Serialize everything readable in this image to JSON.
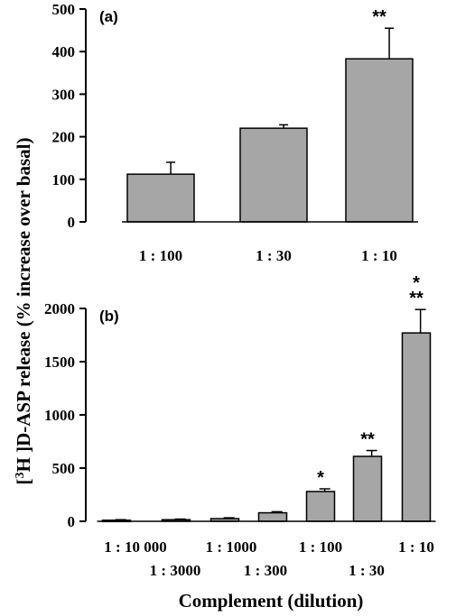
{
  "y_title": {
    "bracket_open": "[",
    "superscript": "3",
    "rest": "H ]D-ASP release (% increase over basal)"
  },
  "x_title": "Complement (dilution)",
  "chart_data": [
    {
      "type": "bar",
      "panel_label": "(a)",
      "categories": [
        "1 : 100",
        "1 : 30",
        "1 : 10"
      ],
      "values": [
        112,
        220,
        383
      ],
      "errors": [
        28,
        8,
        72
      ],
      "annotations": [
        "",
        "",
        "**"
      ],
      "yticks": [
        0,
        100,
        200,
        300,
        400,
        500
      ],
      "ylim": [
        0,
        500
      ],
      "bar_color": "#a6a6a6"
    },
    {
      "type": "bar",
      "panel_label": "(b)",
      "categories": [
        "1 : 10 000",
        "1 : 3000",
        "1 : 1000",
        "1 : 300",
        "1 : 100",
        "1 : 30",
        "1 : 10"
      ],
      "values": [
        10,
        15,
        25,
        80,
        280,
        610,
        1770
      ],
      "errors": [
        5,
        6,
        8,
        10,
        25,
        55,
        220
      ],
      "annotations": [
        "",
        "",
        "",
        "",
        "*",
        "**",
        "*\n**"
      ],
      "yticks": [
        0,
        500,
        1000,
        1500,
        2000
      ],
      "ylim": [
        0,
        2000
      ],
      "bar_color": "#a6a6a6"
    }
  ]
}
